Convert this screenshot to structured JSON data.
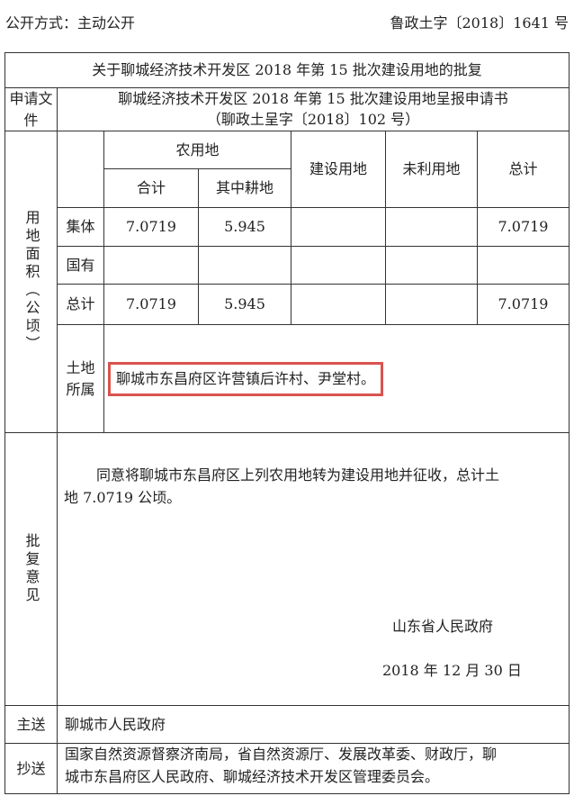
{
  "header": {
    "disclosure": "公开方式：主动公开",
    "doc_number": "鲁政土字〔2018〕1641 号"
  },
  "title": "关于聊城经济技术开发区 2018 年第 15 批次建设用地的批复",
  "application": {
    "label": "申请文件",
    "value_line1": "聊城经济技术开发区 2018 年第 15 批次建设用地呈报申请书",
    "value_line2": "（聊政土呈字〔2018〕102 号）"
  },
  "area": {
    "label": "用地面积（公顷）",
    "headers": {
      "agricultural": "农用地",
      "subtotal": "合计",
      "cultivated": "其中耕地",
      "construction": "建设用地",
      "unused": "未利用地",
      "total": "总计"
    },
    "rows": [
      {
        "label": "集体",
        "subtotal": "7.0719",
        "cultivated": "5.945",
        "construction": "",
        "unused": "",
        "total": "7.0719"
      },
      {
        "label": "国有",
        "subtotal": "",
        "cultivated": "",
        "construction": "",
        "unused": "",
        "total": ""
      },
      {
        "label": "总计",
        "subtotal": "7.0719",
        "cultivated": "5.945",
        "construction": "",
        "unused": "",
        "total": "7.0719"
      }
    ],
    "ownership_label_1": "土地",
    "ownership_label_2": "所属",
    "ownership_value": "聊城市东昌府区许营镇后许村、尹堂村。",
    "highlight_color": "#d9534f"
  },
  "approval": {
    "label": "批复意见",
    "text_line1": "同意将聊城市东昌府区上列农用地转为建设用地并征收，总计土",
    "text_line2": "地 7.0719 公顷。",
    "signer": "山东省人民政府",
    "date": "2018 年 12 月 30 日"
  },
  "main_recipient": {
    "label": "主送",
    "value": "聊城市人民政府"
  },
  "cc": {
    "label": "抄送",
    "line1": "国家自然资源督察济南局，省自然资源厅、发展改革委、财政厅，聊",
    "line2": "城市东昌府区人民政府、聊城经济技术开发区管理委员会。"
  }
}
